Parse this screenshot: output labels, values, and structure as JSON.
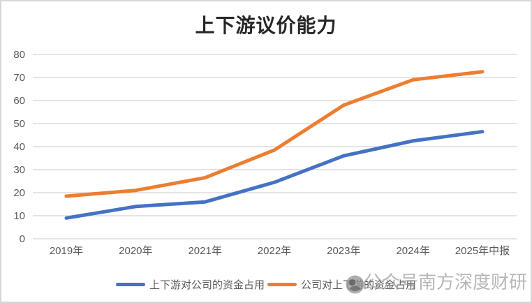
{
  "title": "上下游议价能力",
  "chart_data": {
    "type": "line",
    "title": "上下游议价能力",
    "categories": [
      "2019年",
      "2020年",
      "2021年",
      "2022年",
      "2023年",
      "2024年",
      "2025年中报"
    ],
    "series": [
      {
        "name": "上下游对公司的资金占用",
        "color": "#4472C4",
        "values": [
          9,
          14,
          16,
          24.5,
          36,
          42.5,
          46.5
        ]
      },
      {
        "name": "公司对上下游的资金占用",
        "color": "#ED7D31",
        "values": [
          18.5,
          21,
          26.5,
          38.5,
          58,
          69,
          72.5
        ]
      }
    ],
    "ylim": [
      0,
      80
    ],
    "yticks": [
      0,
      10,
      20,
      30,
      40,
      50,
      60,
      70,
      80
    ],
    "grid": true,
    "legend_position": "bottom",
    "line_width": 5
  },
  "watermark": {
    "logo": "circle-logo",
    "text": "公众号南方深度财研"
  },
  "colors": {
    "series_blue": "#4472C4",
    "series_orange": "#ED7D31",
    "gridline": "#dcdcdc",
    "axis_label": "#595959",
    "title_text": "#262626",
    "frame_border": "#d7d7d7",
    "watermark_gray": "#8a8a8a",
    "background": "#ffffff"
  }
}
